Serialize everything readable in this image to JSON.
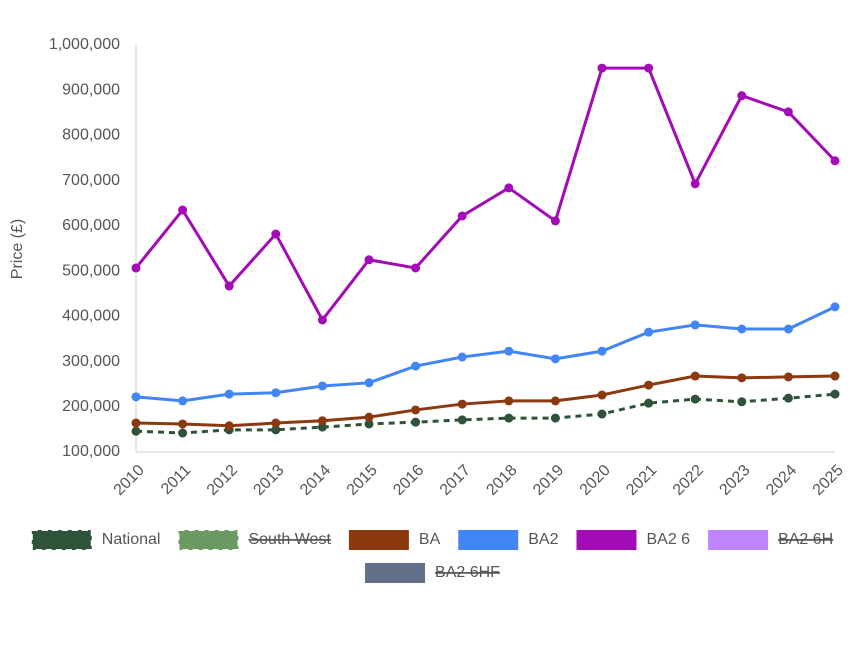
{
  "chart_data": {
    "type": "line",
    "y_label": "Price (£)",
    "categories": [
      "2010",
      "2011",
      "2012",
      "2013",
      "2014",
      "2015",
      "2016",
      "2017",
      "2018",
      "2019",
      "2020",
      "2021",
      "2022",
      "2023",
      "2024",
      "2025"
    ],
    "ylim": [
      100000,
      1000000
    ],
    "yticks": [
      {
        "value": 100000,
        "label": "100,000"
      },
      {
        "value": 200000,
        "label": "200,000"
      },
      {
        "value": 300000,
        "label": "300,000"
      },
      {
        "value": 400000,
        "label": "400,000"
      },
      {
        "value": 500000,
        "label": "500,000"
      },
      {
        "value": 600000,
        "label": "600,000"
      },
      {
        "value": 700000,
        "label": "700,000"
      },
      {
        "value": 800000,
        "label": "800,000"
      },
      {
        "value": 900000,
        "label": "900,000"
      },
      {
        "value": 1000000,
        "label": "1,000,000"
      }
    ],
    "series": [
      {
        "name": "National",
        "color": "#2e5339",
        "dashed": true,
        "hidden": false,
        "values": [
          146000,
          142000,
          149000,
          149000,
          155000,
          162000,
          166000,
          171000,
          175000,
          175000,
          184000,
          208000,
          217000,
          211000,
          219000,
          228000
        ]
      },
      {
        "name": "South West",
        "color": "#6a9a62",
        "dashed": true,
        "hidden": true,
        "values": [
          null,
          null,
          null,
          null,
          null,
          null,
          null,
          null,
          null,
          null,
          null,
          null,
          null,
          null,
          null,
          null
        ]
      },
      {
        "name": "BA",
        "color": "#8b3a0f",
        "dashed": false,
        "hidden": false,
        "values": [
          164000,
          162000,
          158000,
          164000,
          169000,
          177000,
          193000,
          206000,
          213000,
          213000,
          226000,
          248000,
          268000,
          264000,
          266000,
          268000
        ]
      },
      {
        "name": "BA2",
        "color": "#4285f4",
        "dashed": false,
        "hidden": false,
        "values": [
          222000,
          213000,
          228000,
          231000,
          246000,
          253000,
          290000,
          310000,
          323000,
          306000,
          323000,
          365000,
          381000,
          372000,
          372000,
          421000
        ]
      },
      {
        "name": "BA2 6",
        "color": "#a30bb7",
        "dashed": false,
        "hidden": false,
        "values": [
          507000,
          635000,
          467000,
          582000,
          392000,
          525000,
          507000,
          622000,
          684000,
          611000,
          949000,
          949000,
          693000,
          888000,
          852000,
          744000
        ]
      },
      {
        "name": "BA2 6H",
        "color": "#c084fc",
        "dashed": false,
        "hidden": true,
        "values": [
          null,
          null,
          null,
          null,
          null,
          null,
          null,
          null,
          null,
          null,
          null,
          null,
          null,
          null,
          null,
          null
        ]
      },
      {
        "name": "BA2 6HF",
        "color": "#62708a",
        "dashed": false,
        "hidden": true,
        "values": [
          null,
          null,
          null,
          null,
          null,
          null,
          null,
          null,
          null,
          null,
          null,
          null,
          null,
          null,
          null,
          null
        ]
      }
    ]
  }
}
